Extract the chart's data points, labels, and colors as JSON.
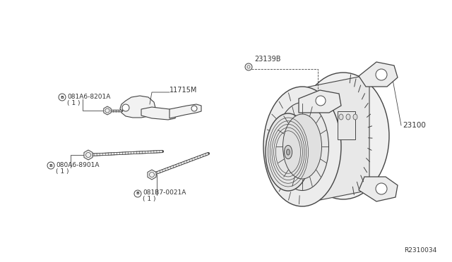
{
  "bg_color": "#ffffff",
  "line_color": "#444444",
  "text_color": "#333333",
  "part_numbers": {
    "bolt_top": "081A6-8201A",
    "bolt_top_qty": "( 1 )",
    "bracket": "11715M",
    "bolt_bottom": "080A6-8901A",
    "bolt_bottom_qty": "( 1 )",
    "long_bolt": "081B7-0021A",
    "long_bolt_qty": "( 1 )",
    "washer": "23139B",
    "alternator": "23100",
    "diagram_id": "R2310034"
  }
}
